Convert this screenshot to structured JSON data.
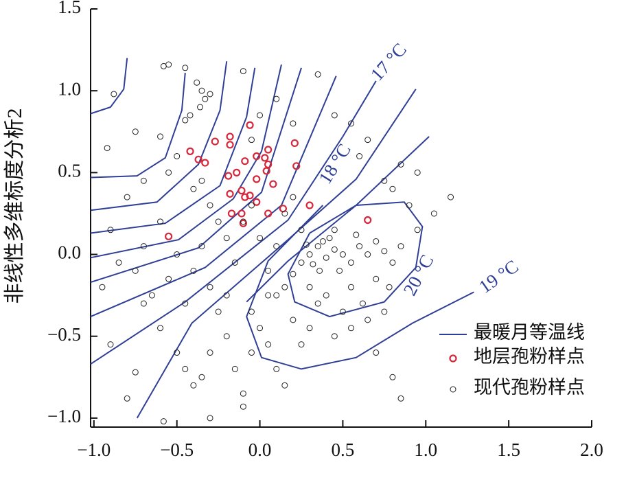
{
  "chart_data": {
    "type": "scatter",
    "ylabel": "非线性多维标度分析2",
    "xlim": [
      -1.02,
      2.0
    ],
    "ylim": [
      -1.055,
      1.5
    ],
    "xticks": [
      {
        "value": -1.0,
        "label": "−1.0"
      },
      {
        "value": -0.5,
        "label": "−0.5"
      },
      {
        "value": 0.0,
        "label": "0.0"
      },
      0.5,
      {
        "value": 1.0,
        "label": "1.0"
      },
      1.5,
      {
        "value": 2.0,
        "label": "2.0"
      }
    ],
    "yticks": [
      {
        "value": -1.0,
        "label": "−1.0"
      },
      {
        "value": -0.5,
        "label": "−0.5"
      },
      {
        "value": 0.0,
        "label": "0.0"
      },
      0.5,
      {
        "value": 1.0,
        "label": "1.0"
      },
      1.5
    ],
    "annotations": [
      "17 °C",
      "18 °C",
      "20 °C",
      "19 °C"
    ],
    "series": [
      {
        "name": "最暖月等温线",
        "color": "#2f3f95",
        "lines": [
          {
            "x": [
              -1.02,
              -0.9,
              -0.82,
              -0.8
            ],
            "values": [
              0.86,
              0.9,
              1.01,
              1.2
            ]
          },
          {
            "x": [
              -1.02,
              -0.74,
              -0.57,
              -0.47,
              -0.45
            ],
            "values": [
              0.47,
              0.48,
              0.59,
              0.88,
              1.11
            ]
          },
          {
            "x": [
              -1.02,
              -0.62,
              -0.37,
              -0.24,
              -0.2
            ],
            "values": [
              0.27,
              0.32,
              0.55,
              0.88,
              1.18
            ]
          },
          {
            "x": [
              -1.02,
              -0.57,
              -0.24,
              -0.08,
              -0.03
            ],
            "values": [
              0.13,
              0.19,
              0.42,
              0.84,
              1.14
            ]
          },
          {
            "x": [
              -1.02,
              -0.49,
              -0.16,
              0.01,
              0.13
            ],
            "values": [
              -0.02,
              0.09,
              0.34,
              0.63,
              1.16
            ]
          },
          {
            "x": [
              -1.02,
              -0.37,
              0.01,
              0.25
            ],
            "values": [
              -0.17,
              0.04,
              0.38,
              1.14
            ]
          },
          {
            "x": [
              -1.02,
              -0.33,
              0.13,
              0.46
            ],
            "values": [
              -0.38,
              -0.08,
              0.3,
              1.09
            ]
          },
          {
            "x": [
              -1.02,
              -0.45,
              0.17,
              0.5,
              0.7
            ],
            "values": [
              -0.67,
              -0.29,
              0.21,
              0.72,
              1.06
            ]
          },
          {
            "x": [
              -0.74,
              -0.41,
              0.17,
              0.58,
              0.94
            ],
            "values": [
              -1.0,
              -0.42,
              0.09,
              0.46,
              1.01
            ]
          },
          {
            "x": [
              -0.08,
              0.17,
              0.58,
              1.02
            ],
            "values": [
              -0.29,
              -0.04,
              0.3,
              0.72
            ]
          },
          {
            "x": [
              0.38,
              0.05,
              -0.08,
              0.01,
              0.25,
              0.58,
              0.92,
              1.29
            ],
            "values": [
              0.3,
              -0.04,
              -0.38,
              -0.63,
              -0.7,
              -0.63,
              -0.42,
              -0.23
            ]
          },
          {
            "x": [
              0.3,
              0.58,
              0.87,
              0.98,
              0.94,
              0.75,
              0.42,
              0.21,
              0.17,
              0.3
            ],
            "values": [
              0.13,
              0.3,
              0.32,
              0.17,
              -0.08,
              -0.29,
              -0.38,
              -0.29,
              -0.12,
              0.13
            ]
          }
        ]
      },
      {
        "name": "地层孢粉样点",
        "color": "#d6283b",
        "x": [
          -0.42,
          -0.37,
          -0.33,
          -0.27,
          -0.18,
          -0.06,
          -0.18,
          -0.19,
          -0.14,
          -0.18,
          -0.11,
          -0.09,
          -0.09,
          -0.02,
          0.03,
          0.05,
          0.05,
          0.04,
          -0.02,
          0.08,
          -0.02,
          -0.06,
          -0.17,
          -0.11,
          -0.1,
          0.05,
          0.14,
          0.22,
          0.3,
          -0.55,
          0.65,
          0.21
        ],
        "values": [
          0.63,
          0.58,
          0.56,
          0.69,
          0.72,
          0.79,
          0.67,
          0.48,
          0.5,
          0.37,
          0.39,
          0.35,
          0.57,
          0.6,
          0.59,
          0.64,
          0.55,
          0.51,
          0.46,
          0.43,
          0.32,
          0.36,
          0.25,
          0.25,
          0.19,
          0.25,
          0.28,
          0.54,
          0.3,
          0.11,
          0.21,
          0.68
        ]
      },
      {
        "name": "现代孢粉样点",
        "color": "#222222",
        "x": [
          -0.58,
          -0.55,
          -0.45,
          -0.38,
          -0.35,
          -0.33,
          -0.36,
          -0.3,
          -0.42,
          -0.45,
          -0.88,
          -0.92,
          -0.75,
          -0.6,
          -0.55,
          -0.5,
          -0.4,
          -0.35,
          -0.3,
          -0.25,
          -0.7,
          -0.8,
          -0.9,
          -0.85,
          -0.95,
          -0.75,
          -0.7,
          -0.6,
          -0.65,
          -0.55,
          -0.5,
          -0.45,
          -0.4,
          -0.35,
          -0.3,
          -0.25,
          -0.2,
          -0.15,
          -0.1,
          -0.05,
          0.0,
          0.05,
          0.1,
          0.15,
          0.2,
          0.25,
          -0.1,
          0.1,
          0.35,
          0.0,
          -0.05,
          0.2,
          0.45,
          0.55,
          0.65,
          0.6,
          0.75,
          0.8,
          0.85,
          0.95,
          0.9,
          1.15,
          1.05,
          0.95,
          0.3,
          0.35,
          0.4,
          0.45,
          0.38,
          0.32,
          0.42,
          0.5,
          0.55,
          0.48,
          0.36,
          0.28,
          0.6,
          0.65,
          0.7,
          0.75,
          0.8,
          0.85,
          0.58,
          0.45,
          0.25,
          0.2,
          0.15,
          0.1,
          0.3,
          0.4,
          0.55,
          0.7,
          0.78,
          0.62,
          0.5,
          -0.5,
          -0.45,
          -0.4,
          -0.35,
          -0.3,
          -0.2,
          -0.15,
          -0.1,
          -0.05,
          0.0,
          0.05,
          0.1,
          0.15,
          0.2,
          0.25,
          0.3,
          0.35,
          0.45,
          0.55,
          0.65,
          0.75,
          0.7,
          0.8,
          0.85,
          -0.58,
          -0.3,
          -0.1,
          -0.8,
          -0.75,
          -0.9,
          -0.6,
          -0.7,
          -0.2,
          -0.05,
          0.05
        ],
        "values": [
          1.15,
          1.16,
          1.14,
          1.05,
          1.0,
          0.95,
          0.9,
          0.98,
          0.85,
          0.82,
          0.98,
          0.65,
          0.75,
          0.72,
          0.5,
          0.6,
          0.4,
          0.45,
          0.3,
          0.2,
          0.45,
          0.35,
          0.15,
          -0.05,
          -0.2,
          -0.1,
          0.05,
          0.2,
          -0.25,
          -0.15,
          0.0,
          -0.3,
          -0.1,
          0.05,
          -0.2,
          -0.35,
          0.1,
          -0.05,
          0.2,
          0.3,
          0.1,
          -0.1,
          0.05,
          0.25,
          0.35,
          0.15,
          1.12,
          0.95,
          1.1,
          0.85,
          0.7,
          0.8,
          0.85,
          0.8,
          0.7,
          0.6,
          0.45,
          0.4,
          0.55,
          0.5,
          0.3,
          0.35,
          0.25,
          0.15,
          0.0,
          0.05,
          -0.02,
          0.03,
          0.08,
          -0.06,
          0.1,
          0.0,
          -0.05,
          -0.1,
          -0.1,
          0.06,
          0.05,
          0.0,
          0.08,
          0.02,
          -0.05,
          0.05,
          0.12,
          0.15,
          -0.05,
          -0.12,
          -0.2,
          -0.25,
          -0.2,
          -0.25,
          -0.2,
          -0.15,
          -0.2,
          -0.3,
          -0.35,
          -0.6,
          -0.7,
          -0.8,
          -0.75,
          -0.6,
          -0.5,
          -0.7,
          -0.85,
          -0.6,
          -0.45,
          -0.55,
          -0.7,
          -0.8,
          -0.4,
          -0.55,
          -0.45,
          -0.3,
          -0.5,
          -0.45,
          -0.4,
          -0.35,
          -0.6,
          -0.75,
          -0.88,
          -1.02,
          -1.0,
          -0.93,
          -0.88,
          -0.72,
          -0.55,
          -0.45,
          -0.3,
          -0.25,
          -0.35,
          -0.25
        ]
      }
    ]
  }
}
